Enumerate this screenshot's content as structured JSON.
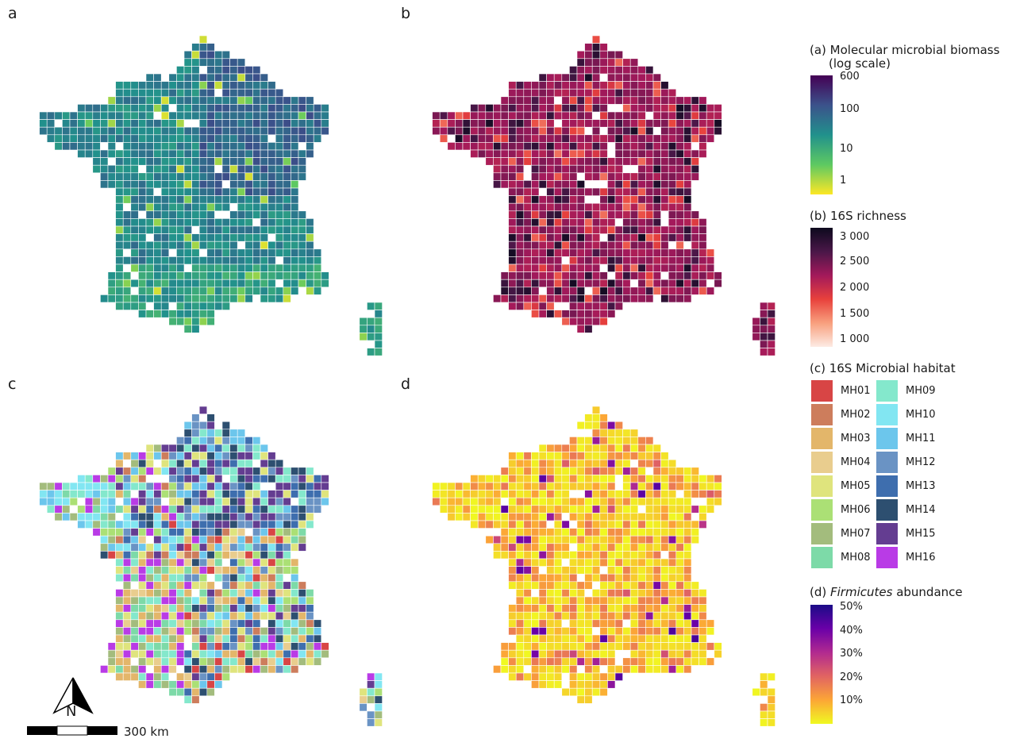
{
  "panels": {
    "a": "a",
    "b": "b",
    "c": "c",
    "d": "d"
  },
  "legend_a": {
    "title1": "(a) Molecular microbial biomass",
    "title2": "(log scale)",
    "ticks": [
      "600",
      "100",
      "10",
      "1"
    ],
    "colors": [
      "#440154",
      "#3b528b",
      "#21918c",
      "#5ec962",
      "#fde725"
    ]
  },
  "legend_b": {
    "title": "(b) 16S richness",
    "ticks": [
      "3 000",
      "2 500",
      "2 000",
      "1 500",
      "1 000"
    ],
    "colors": [
      "#0d0a1e",
      "#4a1748",
      "#a3195b",
      "#e8413c",
      "#f8a07e",
      "#fdebe4"
    ]
  },
  "legend_c": {
    "title": "(c) 16S Microbial habitat",
    "items": [
      {
        "label": "MH01",
        "color": "#d84545"
      },
      {
        "label": "MH02",
        "color": "#cd7d5c"
      },
      {
        "label": "MH03",
        "color": "#e3b66a"
      },
      {
        "label": "MH04",
        "color": "#e9cd8e"
      },
      {
        "label": "MH05",
        "color": "#dfe47d"
      },
      {
        "label": "MH06",
        "color": "#abe075"
      },
      {
        "label": "MH07",
        "color": "#a3bc7d"
      },
      {
        "label": "MH08",
        "color": "#7ddaa8"
      },
      {
        "label": "MH09",
        "color": "#84e8cc"
      },
      {
        "label": "MH10",
        "color": "#82e6f2"
      },
      {
        "label": "MH11",
        "color": "#6cc6ec"
      },
      {
        "label": "MH12",
        "color": "#6a93c4"
      },
      {
        "label": "MH13",
        "color": "#3e6eae"
      },
      {
        "label": "MH14",
        "color": "#2d4f70"
      },
      {
        "label": "MH15",
        "color": "#643d91"
      },
      {
        "label": "MH16",
        "color": "#b93be6"
      }
    ]
  },
  "legend_d": {
    "title_pre": "(d) ",
    "title_italic": "Firmicutes",
    "title_post": " abundance",
    "ticks": [
      "50%",
      "40%",
      "30%",
      "20%",
      "10%"
    ],
    "colors": [
      "#1b0c87",
      "#6a00a8",
      "#b12a90",
      "#e16462",
      "#fca636",
      "#f0f921"
    ]
  },
  "scale": {
    "label": "300 km",
    "north": "N"
  }
}
